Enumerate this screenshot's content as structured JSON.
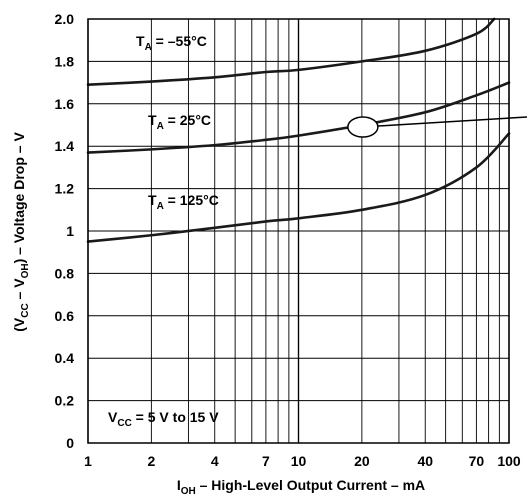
{
  "chart_data": {
    "type": "line",
    "xscale": "log",
    "xlim": [
      1,
      100
    ],
    "ylim": [
      0,
      2.0
    ],
    "grid": true,
    "xticks": [
      1,
      2,
      4,
      7,
      10,
      20,
      40,
      70,
      100
    ],
    "xtick_labels": [
      "1",
      "2",
      "4",
      "7",
      "10",
      "20",
      "40",
      "70",
      "100"
    ],
    "yticks": [
      0,
      0.2,
      0.4,
      0.6,
      0.8,
      1.0,
      1.2,
      1.4,
      1.6,
      1.8,
      2.0
    ],
    "ytick_labels": [
      "0",
      "0.2",
      "0.4",
      "0.6",
      "0.8",
      "1",
      "1.2",
      "1.4",
      "1.6",
      "1.8",
      "2.0"
    ],
    "xlabel": {
      "pre": "I",
      "sub": "OH",
      "post": " – High-Level Output Current – mA"
    },
    "ylabel": {
      "p1": "(V",
      "s1": "CC",
      "p2": " – V",
      "s2": "OH",
      "p3": ") – Voltage Drop – V"
    },
    "series": [
      {
        "label": {
          "pre": "T",
          "sub": "A",
          "post": " = –55°C"
        },
        "x": [
          1,
          2,
          4,
          7,
          10,
          20,
          40,
          70,
          85
        ],
        "y": [
          1.69,
          1.705,
          1.725,
          1.75,
          1.76,
          1.8,
          1.85,
          1.93,
          2.0
        ]
      },
      {
        "label": {
          "pre": "T",
          "sub": "A",
          "post": " = 25°C"
        },
        "x": [
          1,
          2,
          4,
          7,
          10,
          20,
          40,
          70,
          100
        ],
        "y": [
          1.37,
          1.385,
          1.405,
          1.43,
          1.45,
          1.5,
          1.56,
          1.64,
          1.7
        ]
      },
      {
        "label": {
          "pre": "T",
          "sub": "A",
          "post": " = 125°C"
        },
        "x": [
          1,
          2,
          4,
          7,
          10,
          20,
          40,
          70,
          100
        ],
        "y": [
          0.95,
          0.98,
          1.015,
          1.045,
          1.06,
          1.1,
          1.17,
          1.3,
          1.46
        ]
      }
    ],
    "annotation": {
      "pre": "V",
      "sub": "CC",
      "post": " = 5 V to 15 V"
    },
    "marker": {
      "x": 20,
      "y": 1.5
    }
  }
}
